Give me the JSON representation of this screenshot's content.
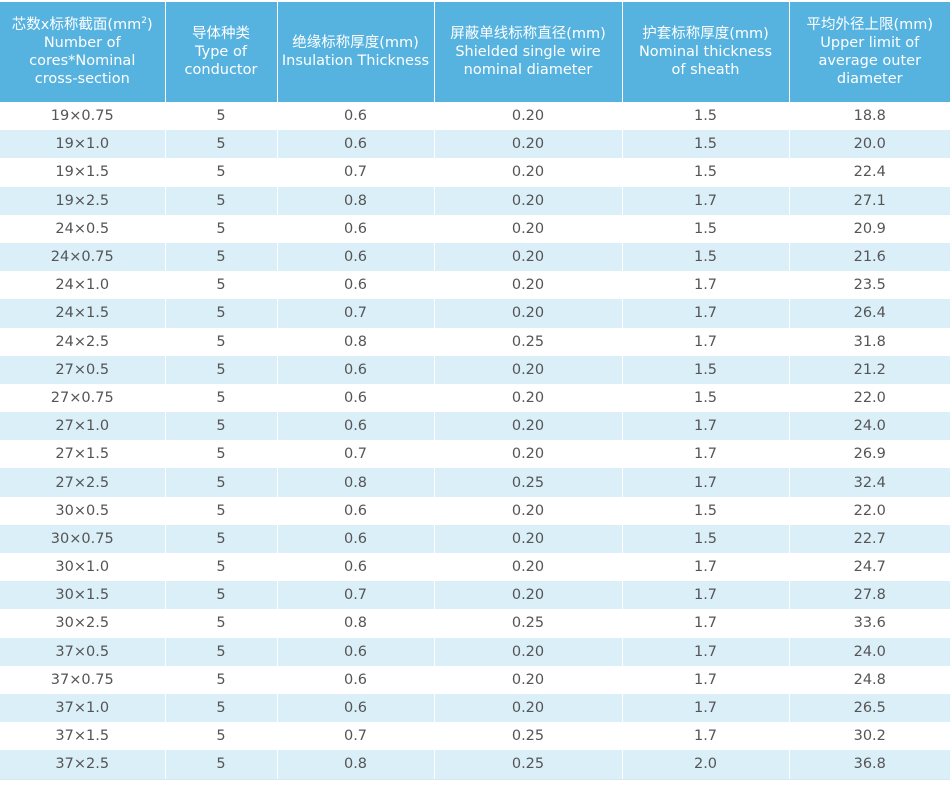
{
  "table": {
    "headers": [
      {
        "zh": "芯数x标称截面(mm",
        "zh_sup": "2",
        "zh_end": ")",
        "en": [
          "Number of",
          "cores*Nominal",
          "cross-section"
        ]
      },
      {
        "zh": "导体种类",
        "zh_sup": "",
        "zh_end": "",
        "en": [
          "Type of",
          "conductor"
        ]
      },
      {
        "zh": "绝缘标称厚度(mm)",
        "zh_sup": "",
        "zh_end": "",
        "en": [
          "Insulation Thickness"
        ]
      },
      {
        "zh": "屏蔽单线标称直径(mm)",
        "zh_sup": "",
        "zh_end": "",
        "en": [
          "Shielded single wire",
          "nominal diameter"
        ]
      },
      {
        "zh": "护套标称厚度(mm)",
        "zh_sup": "",
        "zh_end": "",
        "en": [
          "Nominal thickness",
          "of sheath"
        ]
      },
      {
        "zh": "平均外径上限(mm)",
        "zh_sup": "",
        "zh_end": "",
        "en": [
          "Upper limit of",
          "average outer",
          "diameter"
        ]
      }
    ],
    "rows": [
      [
        "19×0.75",
        "5",
        "0.6",
        "0.20",
        "1.5",
        "18.8"
      ],
      [
        "19×1.0",
        "5",
        "0.6",
        "0.20",
        "1.5",
        "20.0"
      ],
      [
        "19×1.5",
        "5",
        "0.7",
        "0.20",
        "1.5",
        "22.4"
      ],
      [
        "19×2.5",
        "5",
        "0.8",
        "0.20",
        "1.7",
        "27.1"
      ],
      [
        "24×0.5",
        "5",
        "0.6",
        "0.20",
        "1.5",
        "20.9"
      ],
      [
        "24×0.75",
        "5",
        "0.6",
        "0.20",
        "1.5",
        "21.6"
      ],
      [
        "24×1.0",
        "5",
        "0.6",
        "0.20",
        "1.7",
        "23.5"
      ],
      [
        "24×1.5",
        "5",
        "0.7",
        "0.20",
        "1.7",
        "26.4"
      ],
      [
        "24×2.5",
        "5",
        "0.8",
        "0.25",
        "1.7",
        "31.8"
      ],
      [
        "27×0.5",
        "5",
        "0.6",
        "0.20",
        "1.5",
        "21.2"
      ],
      [
        "27×0.75",
        "5",
        "0.6",
        "0.20",
        "1.5",
        "22.0"
      ],
      [
        "27×1.0",
        "5",
        "0.6",
        "0.20",
        "1.7",
        "24.0"
      ],
      [
        "27×1.5",
        "5",
        "0.7",
        "0.20",
        "1.7",
        "26.9"
      ],
      [
        "27×2.5",
        "5",
        "0.8",
        "0.25",
        "1.7",
        "32.4"
      ],
      [
        "30×0.5",
        "5",
        "0.6",
        "0.20",
        "1.5",
        "22.0"
      ],
      [
        "30×0.75",
        "5",
        "0.6",
        "0.20",
        "1.5",
        "22.7"
      ],
      [
        "30×1.0",
        "5",
        "0.6",
        "0.20",
        "1.7",
        "24.7"
      ],
      [
        "30×1.5",
        "5",
        "0.7",
        "0.20",
        "1.7",
        "27.8"
      ],
      [
        "30×2.5",
        "5",
        "0.8",
        "0.25",
        "1.7",
        "33.6"
      ],
      [
        "37×0.5",
        "5",
        "0.6",
        "0.20",
        "1.7",
        "24.0"
      ],
      [
        "37×0.75",
        "5",
        "0.6",
        "0.20",
        "1.7",
        "24.8"
      ],
      [
        "37×1.0",
        "5",
        "0.6",
        "0.20",
        "1.7",
        "26.5"
      ],
      [
        "37×1.5",
        "5",
        "0.7",
        "0.25",
        "1.7",
        "30.2"
      ],
      [
        "37×2.5",
        "5",
        "0.8",
        "0.25",
        "2.0",
        "36.8"
      ]
    ]
  },
  "colors": {
    "header_bg": "#56b3e0",
    "header_text": "#ffffff",
    "stripe_bg": "#dbeff9",
    "cell_text": "#555555"
  }
}
